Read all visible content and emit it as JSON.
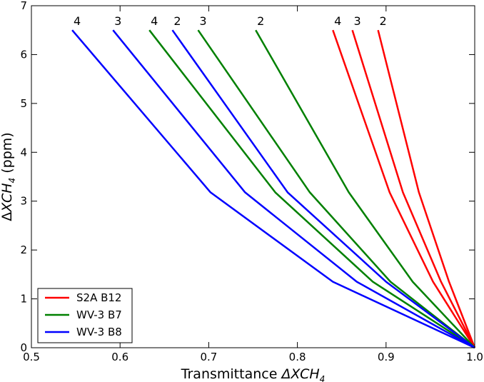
{
  "chart_data": {
    "type": "line",
    "xlabel_main": "Transmittance ",
    "xlabel_math": "ΔXCH",
    "xlabel_sub": "4",
    "ylabel_delta": "Δ",
    "ylabel_math": "XCH",
    "ylabel_sub": "4",
    "ylabel_unit": " (ppm)",
    "xlim": [
      0.5,
      1.0
    ],
    "ylim": [
      0,
      7
    ],
    "xticks": [
      0.5,
      0.6,
      0.7,
      0.8,
      0.9,
      1.0
    ],
    "xtick_labels": [
      "0.5",
      "0.6",
      "0.7",
      "0.8",
      "0.9",
      "1.0"
    ],
    "yticks": [
      0,
      1,
      2,
      3,
      4,
      5,
      6,
      7
    ],
    "ytick_labels": [
      "0",
      "1",
      "2",
      "3",
      "4",
      "5",
      "6",
      "7"
    ],
    "legend_position": "lower-left",
    "series": [
      {
        "name": "S2A B12",
        "color": "#ff0000"
      },
      {
        "name": "WV-3 B7",
        "color": "#008000"
      },
      {
        "name": "WV-3 B8",
        "color": "#0000ff"
      }
    ],
    "curves": [
      {
        "series": 0,
        "label": "2",
        "x": [
          1.0,
          0.971,
          0.937,
          0.891
        ],
        "y": [
          0,
          1.35,
          3.18,
          6.5
        ]
      },
      {
        "series": 0,
        "label": "3",
        "x": [
          1.0,
          0.962,
          0.919,
          0.862
        ],
        "y": [
          0,
          1.35,
          3.18,
          6.5
        ]
      },
      {
        "series": 0,
        "label": "4",
        "x": [
          1.0,
          0.953,
          0.904,
          0.84
        ],
        "y": [
          0,
          1.35,
          3.18,
          6.5
        ]
      },
      {
        "series": 1,
        "label": "2",
        "x": [
          1.0,
          0.93,
          0.858,
          0.753
        ],
        "y": [
          0,
          1.35,
          3.18,
          6.5
        ]
      },
      {
        "series": 1,
        "label": "3",
        "x": [
          1.0,
          0.905,
          0.814,
          0.688
        ],
        "y": [
          0,
          1.35,
          3.18,
          6.5
        ]
      },
      {
        "series": 1,
        "label": "4",
        "x": [
          1.0,
          0.885,
          0.775,
          0.633
        ],
        "y": [
          0,
          1.35,
          3.18,
          6.5
        ]
      },
      {
        "series": 2,
        "label": "2",
        "x": [
          1.0,
          0.9,
          0.789,
          0.659
        ],
        "y": [
          0,
          1.35,
          3.18,
          6.5
        ]
      },
      {
        "series": 2,
        "label": "3",
        "x": [
          1.0,
          0.867,
          0.741,
          0.592
        ],
        "y": [
          0,
          1.35,
          3.18,
          6.5
        ]
      },
      {
        "series": 2,
        "label": "4",
        "x": [
          1.0,
          0.84,
          0.702,
          0.546
        ],
        "y": [
          0,
          1.35,
          3.18,
          6.5
        ]
      }
    ]
  }
}
